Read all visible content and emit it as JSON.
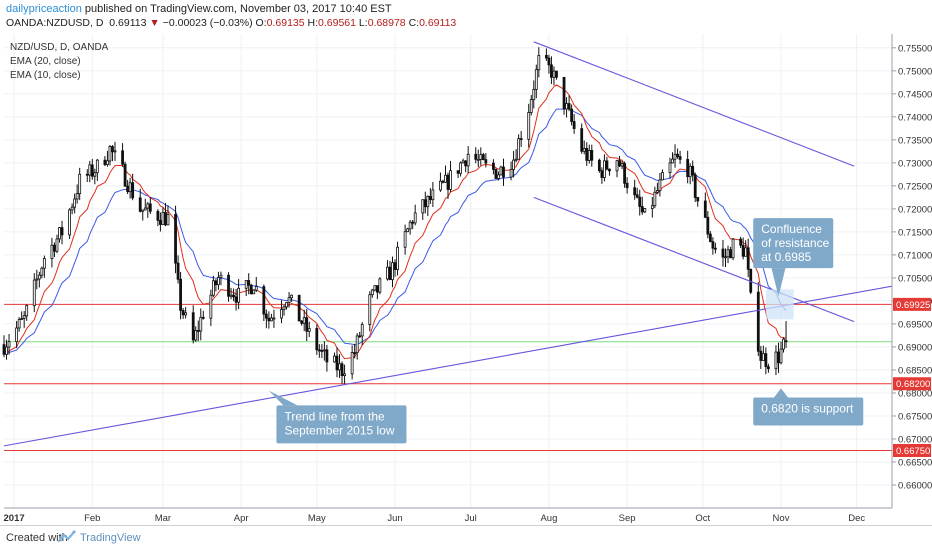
{
  "header": {
    "author": "dailypriceaction",
    "published": "published on TradingView.com, November 03, 2017 10:40 EST",
    "symbol": "OANDA:NZDUSD, D",
    "last": "0.69113",
    "change": "−0.00023 (−0.03%)",
    "o_label": "O:",
    "o": "0.69135",
    "h_label": "H:",
    "h": "0.69561",
    "l_label": "L:",
    "l": "0.68978",
    "c_label": "C:",
    "c": "0.69113"
  },
  "indicators": {
    "line1": "NZD/USD, D, OANDA",
    "line2": "EMA (20, close)",
    "line3": "EMA (10, close)"
  },
  "footer": {
    "created": "Created with",
    "brand": "TradingView"
  },
  "colors": {
    "up": "#ffffff",
    "down": "#111111",
    "wick": "#111111",
    "ema20": "#3c5ae6",
    "ema10": "#e0301e",
    "hline": "#e53935",
    "green_line": "#7ddc7d",
    "trend": "#6655dd",
    "callout": "#7fa8c9",
    "price_tag": "#e53935",
    "grid": "#eef0f4"
  },
  "chart_data": {
    "type": "candlestick",
    "symbol": "NZD/USD",
    "timeframe": "D",
    "x_range": [
      "2016-12-28",
      "2017-12-15"
    ],
    "y_range": [
      0.655,
      0.758
    ],
    "y_ticks": [
      "0.75500",
      "0.75000",
      "0.74500",
      "0.74000",
      "0.73500",
      "0.73000",
      "0.72500",
      "0.72000",
      "0.71500",
      "0.71000",
      "0.70500",
      "0.70000",
      "0.69500",
      "0.69000",
      "0.68500",
      "0.68000",
      "0.67500",
      "0.67000",
      "0.66500",
      "0.66000"
    ],
    "x_ticks": [
      {
        "label": "2017",
        "date": "2017-01-01",
        "bold": true
      },
      {
        "label": "Feb",
        "date": "2017-02-01"
      },
      {
        "label": "Mar",
        "date": "2017-03-01"
      },
      {
        "label": "Apr",
        "date": "2017-04-01"
      },
      {
        "label": "May",
        "date": "2017-05-01"
      },
      {
        "label": "Jun",
        "date": "2017-06-01"
      },
      {
        "label": "Jul",
        "date": "2017-07-01"
      },
      {
        "label": "Aug",
        "date": "2017-08-01"
      },
      {
        "label": "Sep",
        "date": "2017-09-01"
      },
      {
        "label": "Oct",
        "date": "2017-10-01"
      },
      {
        "label": "Nov",
        "date": "2017-11-01"
      },
      {
        "label": "Dec",
        "date": "2017-12-01"
      }
    ],
    "close_path": [
      [
        "2016-12-28",
        0.6905
      ],
      [
        "2017-01-05",
        0.696
      ],
      [
        "2017-01-13",
        0.7095
      ],
      [
        "2017-01-20",
        0.715
      ],
      [
        "2017-01-27",
        0.726
      ],
      [
        "2017-02-03",
        0.729
      ],
      [
        "2017-02-08",
        0.733
      ],
      [
        "2017-02-14",
        0.727
      ],
      [
        "2017-02-20",
        0.72
      ],
      [
        "2017-02-25",
        0.719
      ],
      [
        "2017-03-03",
        0.718
      ],
      [
        "2017-03-08",
        0.699
      ],
      [
        "2017-03-13",
        0.691
      ],
      [
        "2017-03-17",
        0.6975
      ],
      [
        "2017-03-23",
        0.705
      ],
      [
        "2017-03-31",
        0.701
      ],
      [
        "2017-04-06",
        0.704
      ],
      [
        "2017-04-12",
        0.696
      ],
      [
        "2017-04-19",
        0.701
      ],
      [
        "2017-04-25",
        0.6955
      ],
      [
        "2017-05-01",
        0.69
      ],
      [
        "2017-05-05",
        0.687
      ],
      [
        "2017-05-11",
        0.685
      ],
      [
        "2017-05-16",
        0.689
      ],
      [
        "2017-05-22",
        0.7
      ],
      [
        "2017-05-31",
        0.707
      ],
      [
        "2017-06-08",
        0.718
      ],
      [
        "2017-06-15",
        0.722
      ],
      [
        "2017-06-22",
        0.726
      ],
      [
        "2017-06-30",
        0.732
      ],
      [
        "2017-07-07",
        0.729
      ],
      [
        "2017-07-12",
        0.728
      ],
      [
        "2017-07-18",
        0.731
      ],
      [
        "2017-07-24",
        0.742
      ],
      [
        "2017-07-28",
        0.752
      ],
      [
        "2017-08-02",
        0.75
      ],
      [
        "2017-08-07",
        0.743
      ],
      [
        "2017-08-14",
        0.733
      ],
      [
        "2017-08-21",
        0.728
      ],
      [
        "2017-08-28",
        0.731
      ],
      [
        "2017-09-04",
        0.722
      ],
      [
        "2017-09-08",
        0.718
      ],
      [
        "2017-09-14",
        0.725
      ],
      [
        "2017-09-20",
        0.731
      ],
      [
        "2017-09-25",
        0.729
      ],
      [
        "2017-09-29",
        0.722
      ],
      [
        "2017-10-05",
        0.712
      ],
      [
        "2017-10-09",
        0.709
      ],
      [
        "2017-10-13",
        0.712
      ],
      [
        "2017-10-18",
        0.711
      ],
      [
        "2017-10-20",
        0.7
      ],
      [
        "2017-10-24",
        0.688
      ],
      [
        "2017-10-27",
        0.687
      ],
      [
        "2017-10-31",
        0.688
      ],
      [
        "2017-11-03",
        0.6911
      ]
    ],
    "ohlc_last": {
      "open": 0.69135,
      "high": 0.69561,
      "low": 0.68978,
      "close": 0.69113
    },
    "horizontal_levels": [
      {
        "price": 0.69925,
        "label": "0.69925",
        "color": "#e53935"
      },
      {
        "price": 0.682,
        "label": "0.68200",
        "color": "#e53935"
      },
      {
        "price": 0.6675,
        "label": "0.66750",
        "color": "#e53935"
      },
      {
        "price": 0.69113,
        "label": "",
        "color": "#7ddc7d"
      }
    ],
    "trend_lines": [
      {
        "from": [
          "2016-12-28",
          0.6685
        ],
        "to": [
          "2017-12-15",
          0.7032
        ]
      },
      {
        "from": [
          "2017-07-26",
          0.7563
        ],
        "to": [
          "2017-11-30",
          0.7293
        ]
      },
      {
        "from": [
          "2017-07-26",
          0.7225
        ],
        "to": [
          "2017-11-30",
          0.6955
        ]
      }
    ],
    "annotations": [
      {
        "text": [
          "Trend line from the",
          "September 2015 low"
        ]
      },
      {
        "text": [
          "Confluence",
          "of resistance",
          "at 0.6985"
        ]
      },
      {
        "text": [
          "0.6820 is support"
        ]
      }
    ]
  }
}
